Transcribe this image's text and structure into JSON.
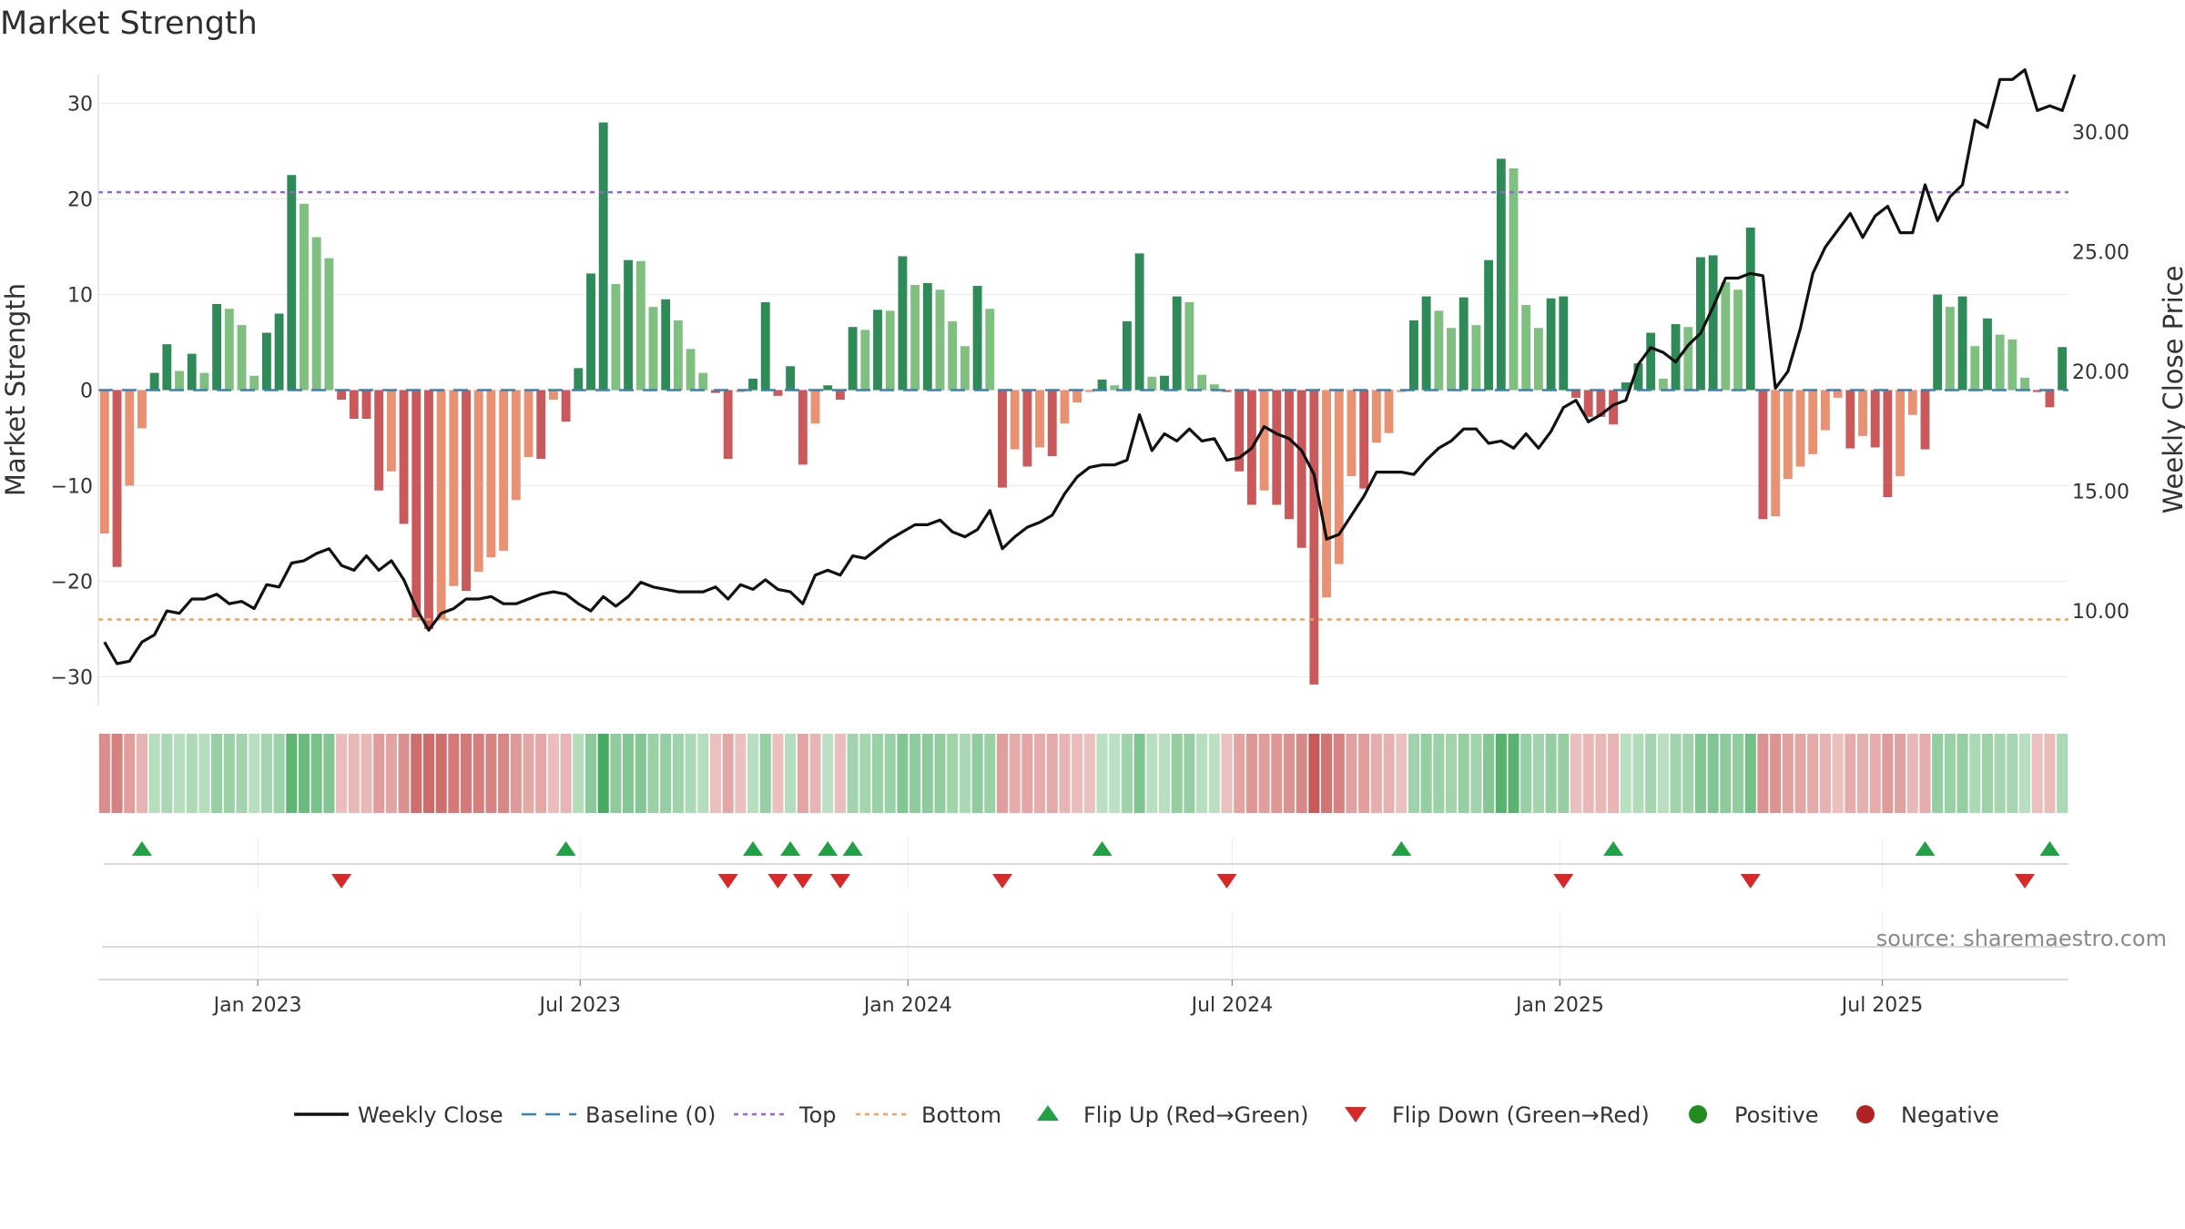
{
  "chart_data": {
    "type": "bar",
    "title": "Market Strength",
    "ylabel": "Market Strength",
    "y2label": "Weekly Close Price",
    "ylim": [
      -33,
      33
    ],
    "y2lim": [
      6.05,
      32.4
    ],
    "yticks": [
      30,
      20,
      10,
      0,
      -10,
      -20,
      -30
    ],
    "y2ticks": [
      {
        "value": 30,
        "label": "30.00"
      },
      {
        "value": 25,
        "label": "25.00"
      },
      {
        "value": 20,
        "label": "20.00"
      },
      {
        "value": 15,
        "label": "15.00"
      },
      {
        "value": 10,
        "label": "10.00"
      }
    ],
    "x_start": "2022-10-07",
    "x_end": "2025-10-10",
    "x_ticks": [
      {
        "date": "2023-01-01",
        "label": "Jan 2023"
      },
      {
        "date": "2023-07-01",
        "label": "Jul 2023"
      },
      {
        "date": "2024-01-01",
        "label": "Jan 2024"
      },
      {
        "date": "2024-07-01",
        "label": "Jul 2024"
      },
      {
        "date": "2025-01-01",
        "label": "Jan 2025"
      },
      {
        "date": "2025-07-01",
        "label": "Jul 2025"
      }
    ],
    "top_line": 20.7,
    "bottom_line": -24,
    "strength": [
      -15,
      -18.5,
      -10,
      -4,
      1.8,
      4.8,
      2,
      3.8,
      1.8,
      9,
      8.5,
      6.8,
      1.5,
      6,
      8,
      22.5,
      19.5,
      16,
      13.8,
      -1,
      -3,
      -3,
      -10.5,
      -8.5,
      -14,
      -23.8,
      -25,
      -24,
      -20.5,
      -21,
      -19,
      -17.5,
      -16.8,
      -11.5,
      -7,
      -7.2,
      -1,
      -3.3,
      2.3,
      12.2,
      28,
      11.1,
      13.6,
      13.5,
      8.7,
      9.5,
      7.3,
      4.3,
      1.8,
      -0.3,
      -7.2,
      -0.2,
      1.2,
      9.2,
      -0.6,
      2.5,
      -7.8,
      -3.5,
      0.5,
      -1,
      6.6,
      6.3,
      8.4,
      8.3,
      14,
      11,
      11.2,
      10.5,
      7.2,
      4.6,
      10.9,
      8.5,
      -10.2,
      -6.2,
      -8,
      -6,
      -6.9,
      -3.5,
      -1.3,
      -0.2,
      1.1,
      0.5,
      7.2,
      14.3,
      1.4,
      1.5,
      9.8,
      9.2,
      1.6,
      0.6,
      -0.2,
      -8.5,
      -12,
      -10.5,
      -12,
      -13.5,
      -16.5,
      -30.8,
      -21.7,
      -18.2,
      -9,
      -10.3,
      -5.5,
      -4.5,
      -0.2,
      7.3,
      9.8,
      8.3,
      6.5,
      9.7,
      6.8,
      13.6,
      24.2,
      23.2,
      8.9,
      6.5,
      9.6,
      9.8,
      -0.8,
      -2.8,
      -2.8,
      -3.6,
      0.8,
      2.8,
      6,
      1.2,
      6.9,
      6.6,
      13.9,
      14.1,
      11.3,
      10.5,
      17,
      -13.5,
      -13.2,
      -9.3,
      -8,
      -6.7,
      -4.2,
      -0.8,
      -6.1,
      -4.8,
      -6,
      -11.2,
      -9,
      -2.6,
      -6.2,
      10,
      8.7,
      9.8,
      4.6,
      7.5,
      5.8,
      5.3,
      1.3,
      -0.2,
      -1.8,
      4.5
    ],
    "close": [
      8.7,
      7.8,
      7.9,
      8.7,
      9,
      10,
      9.9,
      10.5,
      10.5,
      10.7,
      10.3,
      10.4,
      10.1,
      11.1,
      11,
      12,
      12.1,
      12.4,
      12.6,
      11.9,
      11.7,
      12.3,
      11.7,
      12.1,
      11.3,
      10.1,
      9.2,
      9.9,
      10.1,
      10.5,
      10.5,
      10.6,
      10.3,
      10.3,
      10.5,
      10.7,
      10.8,
      10.7,
      10.3,
      10,
      10.6,
      10.2,
      10.6,
      11.2,
      11,
      10.9,
      10.8,
      10.8,
      10.8,
      11,
      10.5,
      11.1,
      10.9,
      11.3,
      10.9,
      10.8,
      10.3,
      11.5,
      11.7,
      11.5,
      12.3,
      12.2,
      12.6,
      13,
      13.3,
      13.6,
      13.6,
      13.8,
      13.3,
      13.1,
      13.4,
      14.2,
      12.6,
      13.1,
      13.5,
      13.7,
      14,
      14.9,
      15.6,
      16,
      16.1,
      16.1,
      16.3,
      18.2,
      16.7,
      17.4,
      17.1,
      17.6,
      17.1,
      17.2,
      16.3,
      16.4,
      16.8,
      17.7,
      17.4,
      17.2,
      16.7,
      15.7,
      13,
      13.2,
      14,
      14.8,
      15.8,
      15.8,
      15.8,
      15.7,
      16.3,
      16.8,
      17.1,
      17.6,
      17.6,
      17,
      17.1,
      16.8,
      17.4,
      16.8,
      17.5,
      18.5,
      18.8,
      17.9,
      18.2,
      18.6,
      18.8,
      20.3,
      21,
      20.8,
      20.4,
      21.1,
      21.6,
      22.7,
      23.9,
      23.9,
      24.1,
      24,
      19.3,
      20,
      21.8,
      24.1,
      25.2,
      25.9,
      26.6,
      25.6,
      26.5,
      26.9,
      25.8,
      25.8,
      27.8,
      26.3,
      27.3,
      27.8,
      30.5,
      30.2,
      32.2,
      32.2,
      32.6,
      30.9,
      31.1,
      30.9,
      32.4
    ],
    "flip_up": [
      3,
      37,
      52,
      55,
      58,
      60,
      80,
      104,
      121,
      146,
      156
    ],
    "flip_down": [
      19,
      50,
      54,
      56,
      59,
      72,
      90,
      117,
      132,
      154
    ],
    "legend": [
      "Weekly Close",
      "Baseline (0)",
      "Top",
      "Bottom",
      "Flip Up (Red→Green)",
      "Flip Down (Green→Red)",
      "Positive",
      "Negative"
    ],
    "annotation": "source: sharemaestro.com",
    "colors": {
      "pos_strong": "#2e8b57",
      "pos_light": "#7fbf7f",
      "neg_strong": "#c9595a",
      "neg_light": "#e89273",
      "close": "#111111",
      "baseline": "#3d7fb3",
      "top": "#9a65c8",
      "bottom": "#f0a35e",
      "flip_up": "#22a046",
      "flip_down": "#d62a2a",
      "positive": "#228b22",
      "negative": "#b22222"
    }
  }
}
